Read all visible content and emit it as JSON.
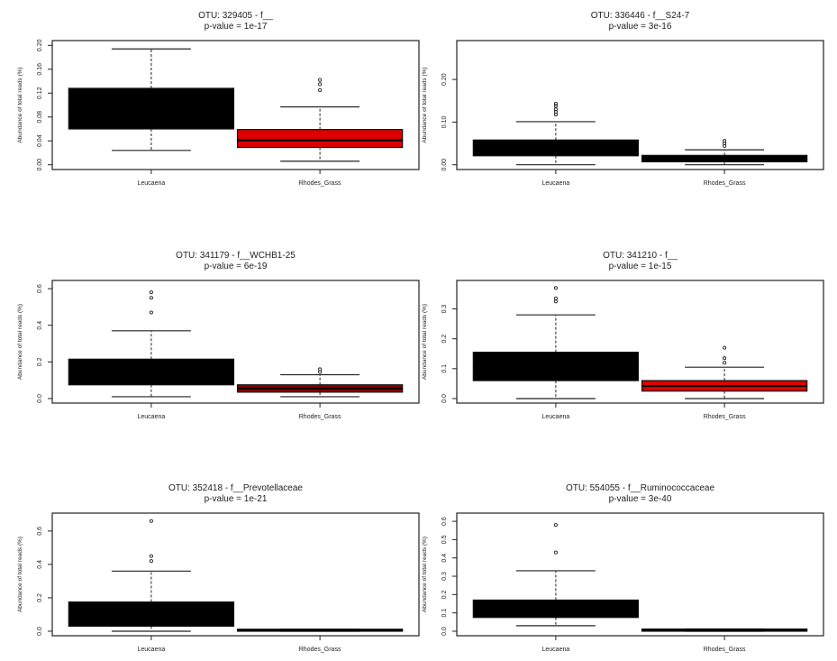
{
  "chart_data": [
    {
      "type": "boxplot",
      "title": "OTU: 329405 - f__",
      "subtitle": "p-value = 1e-17",
      "ylabel": "Abundance of total reads (%)",
      "categories": [
        "Leucaena",
        "Rhodes_Grass"
      ],
      "ylim": [
        0,
        0.2
      ],
      "yticks": [
        "0.00",
        "0.04",
        "0.08",
        "0.12",
        "0.16",
        "0.20"
      ],
      "boxes": [
        {
          "name": "Leucaena",
          "color": "#000000",
          "median": 0.097,
          "q1": 0.06,
          "q3": 0.128,
          "whisker_low": 0.024,
          "whisker_high": 0.194,
          "outliers": []
        },
        {
          "name": "Rhodes_Grass",
          "color": "#dd0000",
          "median": 0.041,
          "q1": 0.029,
          "q3": 0.059,
          "whisker_low": 0.006,
          "whisker_high": 0.097,
          "outliers": [
            0.125,
            0.135,
            0.142
          ]
        }
      ]
    },
    {
      "type": "boxplot",
      "title": "OTU: 336446 - f__S24-7",
      "subtitle": "p-value = 3e-16",
      "ylabel": "Abundance of total reads (%)",
      "categories": [
        "Leucaena",
        "Rhodes_Grass"
      ],
      "ylim": [
        0,
        0.28
      ],
      "yticks": [
        "0.00",
        "0.10",
        "0.20"
      ],
      "boxes": [
        {
          "name": "Leucaena",
          "color": "#000000",
          "median": 0.045,
          "q1": 0.021,
          "q3": 0.058,
          "whisker_low": 0.0,
          "whisker_high": 0.101,
          "outliers": [
            0.118,
            0.124,
            0.13,
            0.138,
            0.143
          ]
        },
        {
          "name": "Rhodes_Grass",
          "color": "#000000",
          "median": 0.013,
          "q1": 0.007,
          "q3": 0.022,
          "whisker_low": 0.0,
          "whisker_high": 0.035,
          "outliers": [
            0.044,
            0.05,
            0.056
          ]
        }
      ]
    },
    {
      "type": "boxplot",
      "title": "OTU: 341179 - f__WCHB1-25",
      "subtitle": "p-value = 6e-19",
      "ylabel": "Abundance of total reads (%)",
      "categories": [
        "Leucaena",
        "Rhodes_Grass"
      ],
      "ylim": [
        0,
        0.62
      ],
      "yticks": [
        "0.0",
        "0.2",
        "0.4",
        "0.6"
      ],
      "boxes": [
        {
          "name": "Leucaena",
          "color": "#000000",
          "median": 0.125,
          "q1": 0.075,
          "q3": 0.215,
          "whisker_low": 0.01,
          "whisker_high": 0.37,
          "outliers": [
            0.47,
            0.55,
            0.58
          ]
        },
        {
          "name": "Rhodes_Grass",
          "color": "#8a0000",
          "median": 0.055,
          "q1": 0.035,
          "q3": 0.075,
          "whisker_low": 0.01,
          "whisker_high": 0.13,
          "outliers": [
            0.145,
            0.16
          ]
        }
      ]
    },
    {
      "type": "boxplot",
      "title": "OTU: 341210 - f__",
      "subtitle": "p-value = 1e-15",
      "ylabel": "Abundance of total reads (%)",
      "categories": [
        "Leucaena",
        "Rhodes_Grass"
      ],
      "ylim": [
        0,
        0.38
      ],
      "yticks": [
        "0.0",
        "0.1",
        "0.2",
        "0.3"
      ],
      "boxes": [
        {
          "name": "Leucaena",
          "color": "#000000",
          "median": 0.11,
          "q1": 0.06,
          "q3": 0.155,
          "whisker_low": 0.0,
          "whisker_high": 0.28,
          "outliers": [
            0.325,
            0.335,
            0.37
          ]
        },
        {
          "name": "Rhodes_Grass",
          "color": "#dd0000",
          "median": 0.042,
          "q1": 0.025,
          "q3": 0.06,
          "whisker_low": 0.0,
          "whisker_high": 0.105,
          "outliers": [
            0.12,
            0.135,
            0.17
          ]
        }
      ]
    },
    {
      "type": "boxplot",
      "title": "OTU: 352418 - f__Prevotellaceae",
      "subtitle": "p-value = 1e-21",
      "ylabel": "Abundance of total reads (%)",
      "categories": [
        "Leucaena",
        "Rhodes_Grass"
      ],
      "ylim": [
        0,
        0.68
      ],
      "yticks": [
        "0.0",
        "0.2",
        "0.4",
        "0.6"
      ],
      "boxes": [
        {
          "name": "Leucaena",
          "color": "#000000",
          "median": 0.08,
          "q1": 0.03,
          "q3": 0.175,
          "whisker_low": 0.0,
          "whisker_high": 0.36,
          "outliers": [
            0.42,
            0.45,
            0.66
          ]
        },
        {
          "name": "Rhodes_Grass",
          "color": "#000000",
          "median": 0.005,
          "q1": 0.0,
          "q3": 0.012,
          "whisker_low": 0.0,
          "whisker_high": 0.012,
          "outliers": []
        }
      ]
    },
    {
      "type": "boxplot",
      "title": "OTU: 554055 - f__Ruminococcaceae",
      "subtitle": "p-value = 3e-40",
      "ylabel": "Abundance of total reads (%)",
      "categories": [
        "Leucaena",
        "Rhodes_Grass"
      ],
      "ylim": [
        0,
        0.62
      ],
      "yticks": [
        "0.0",
        "0.1",
        "0.2",
        "0.3",
        "0.4",
        "0.5",
        "0.6"
      ],
      "boxes": [
        {
          "name": "Leucaena",
          "color": "#000000",
          "median": 0.12,
          "q1": 0.075,
          "q3": 0.17,
          "whisker_low": 0.03,
          "whisker_high": 0.33,
          "outliers": [
            0.43,
            0.58
          ]
        },
        {
          "name": "Rhodes_Grass",
          "color": "#000000",
          "median": 0.006,
          "q1": 0.0,
          "q3": 0.012,
          "whisker_low": 0.0,
          "whisker_high": 0.012,
          "outliers": []
        }
      ]
    }
  ]
}
